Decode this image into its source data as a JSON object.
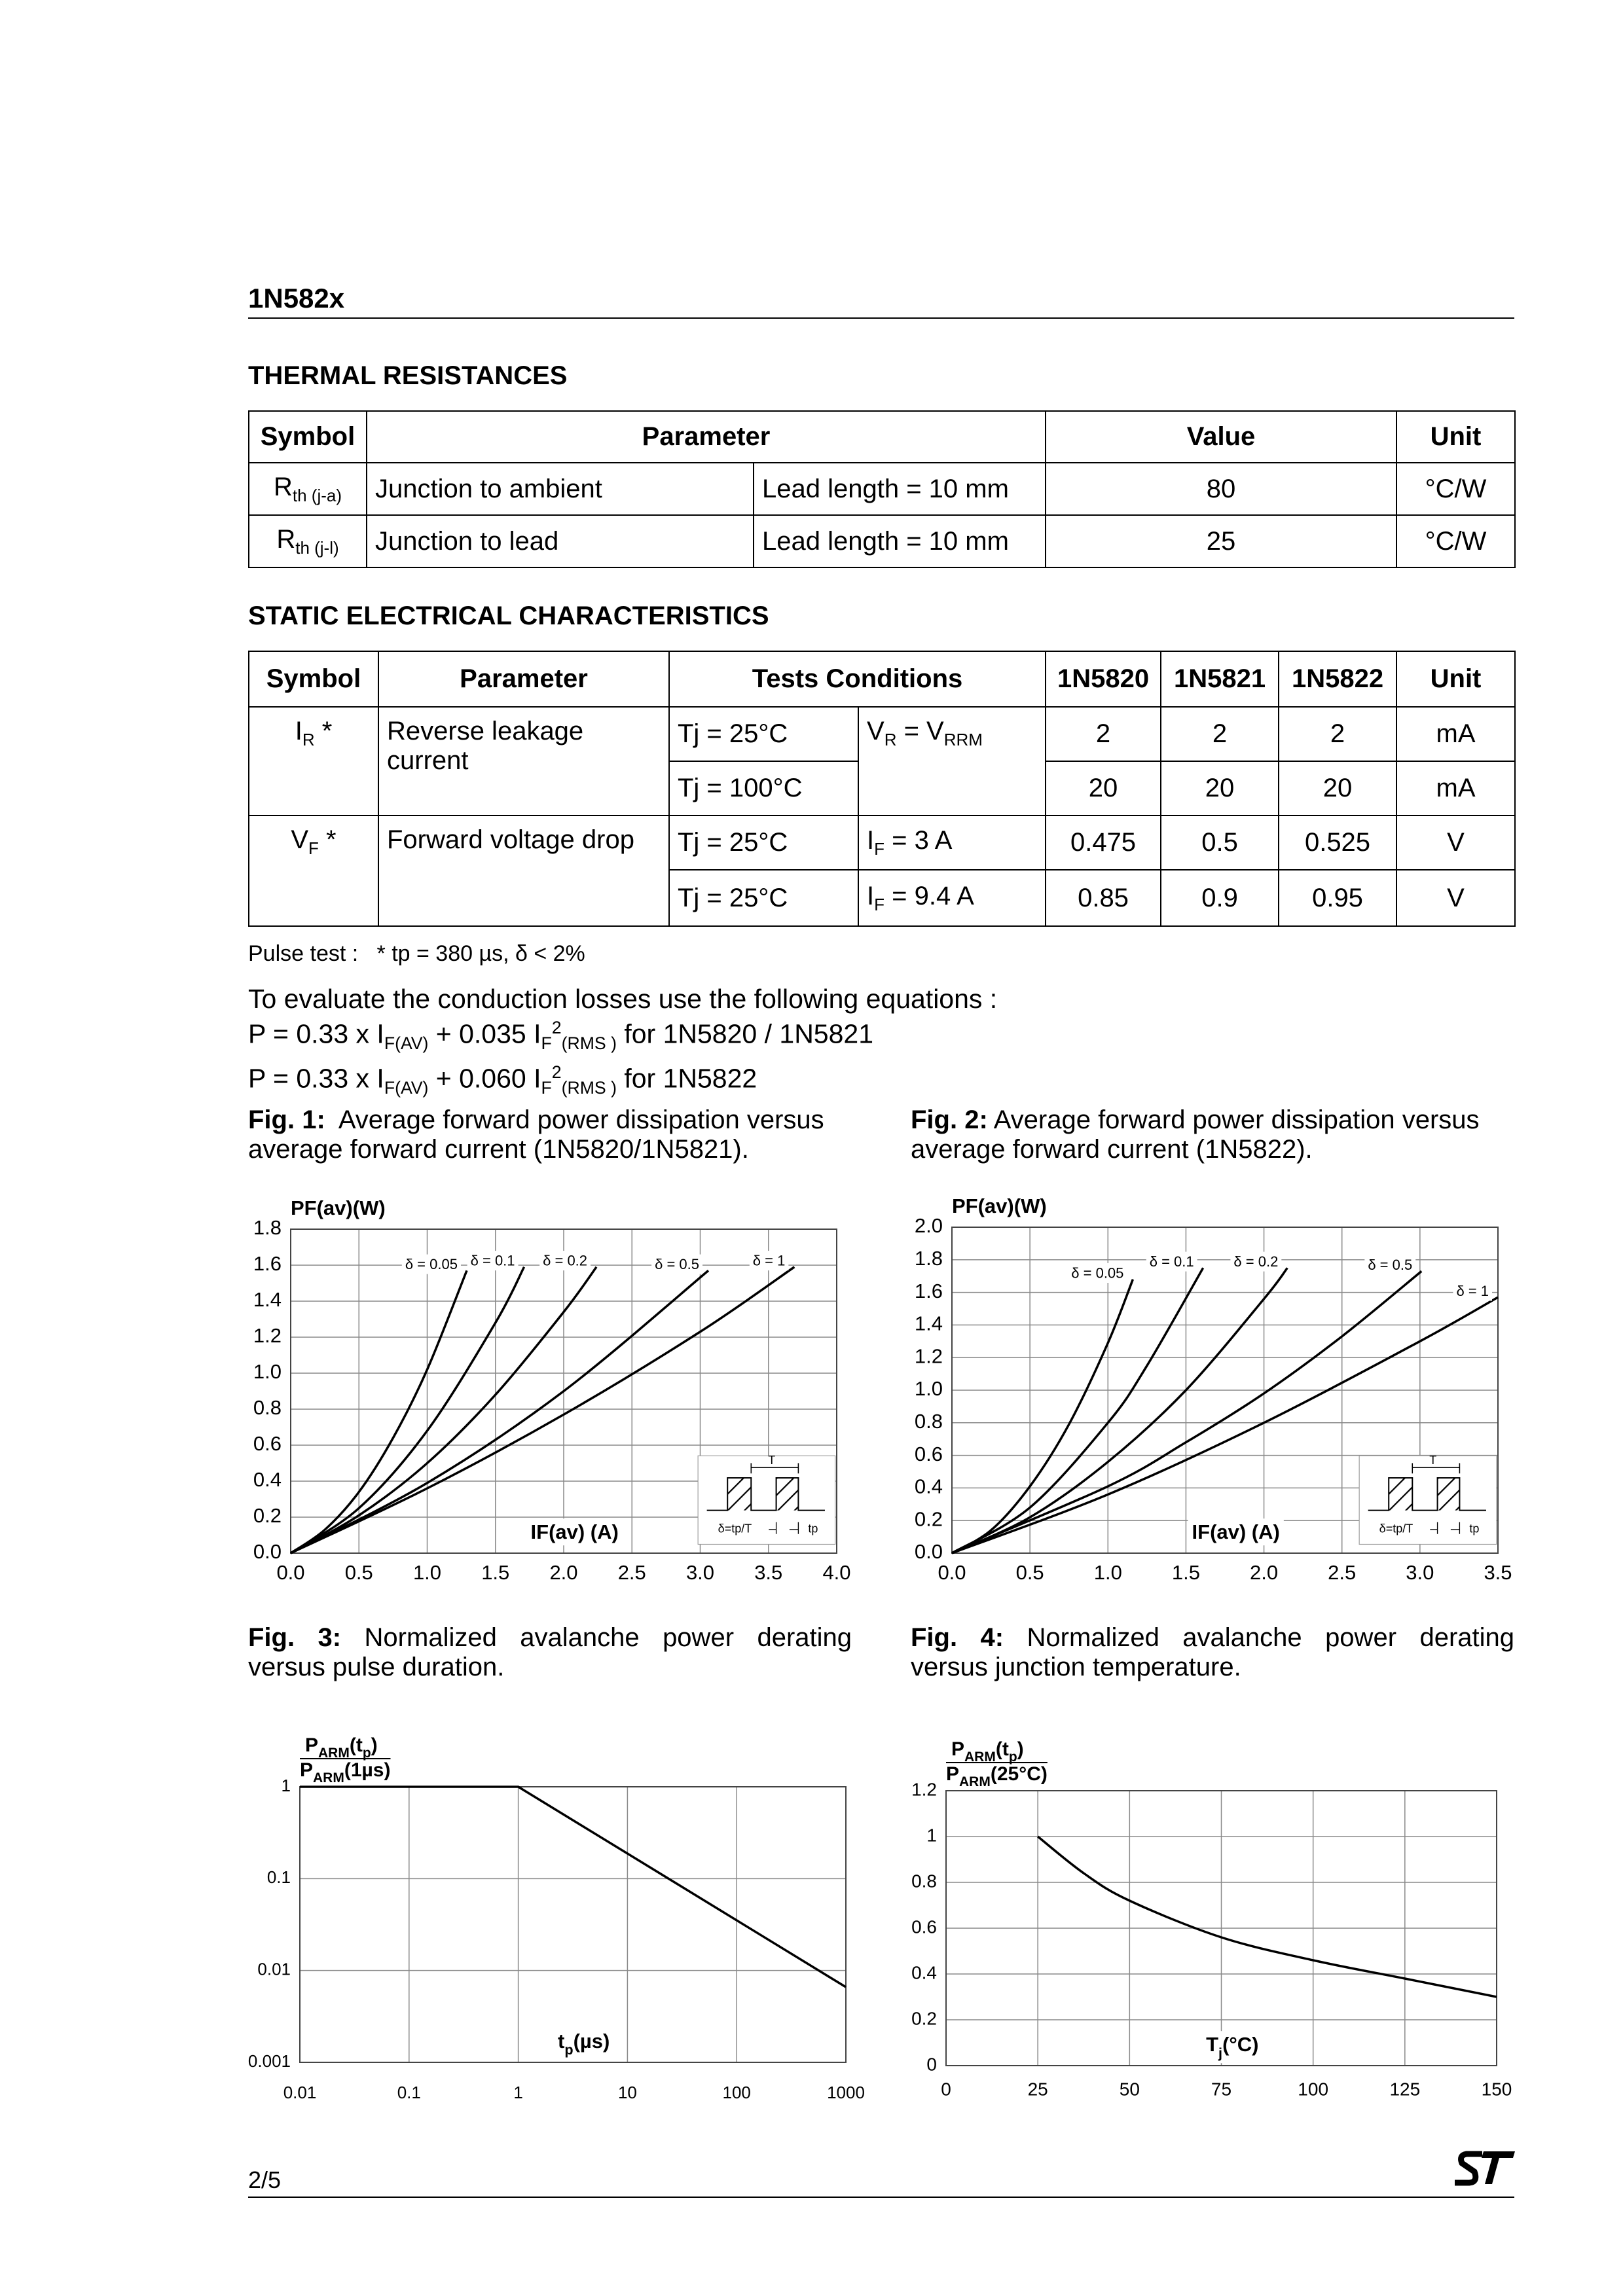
{
  "header": {
    "title": "1N582x"
  },
  "thermal_resistances": {
    "heading": "THERMAL  RESISTANCES",
    "columns": [
      "Symbol",
      "Parameter",
      "Value",
      "Unit"
    ],
    "rows": [
      {
        "symbol": [
          "R",
          {
            "sub": "th (j-a)"
          }
        ],
        "parameter": "Junction to ambient",
        "condition": "Lead length = 10 mm",
        "value": 80,
        "unit": "°C/W"
      },
      {
        "symbol": [
          "R",
          {
            "sub": "th (j-l)"
          }
        ],
        "parameter": "Junction to lead",
        "condition": "Lead length = 10 mm",
        "value": 25,
        "unit": "°C/W"
      }
    ]
  },
  "static_characteristics": {
    "heading": "STATIC ELECTRICAL CHARACTERISTICS",
    "columns": [
      "Symbol",
      "Parameter",
      "Tests Conditions",
      "1N5820",
      "1N5821",
      "1N5822",
      "Unit"
    ],
    "rows": [
      {
        "symbol": [
          "I",
          {
            "sub": "R"
          },
          " *"
        ],
        "parameter": "Reverse leakage current",
        "tests": [
          {
            "tj": "Tj = 25°C",
            "condition": [
              "V",
              {
                "sub": "R"
              },
              " = V",
              {
                "sub": "RRM"
              }
            ],
            "values": [
              2,
              2,
              2
            ],
            "unit": "mA"
          },
          {
            "tj": "Tj = 100°C",
            "values": [
              20,
              20,
              20
            ],
            "unit": "mA"
          }
        ]
      },
      {
        "symbol": [
          "V",
          {
            "sub": "F"
          },
          " *"
        ],
        "parameter": "Forward voltage drop",
        "tests": [
          {
            "tj": "Tj = 25°C",
            "condition": [
              "I",
              {
                "sub": "F"
              },
              " =  3 A"
            ],
            "values": [
              0.475,
              0.5,
              0.525
            ],
            "unit": "V"
          },
          {
            "tj": "Tj = 25°C",
            "condition": [
              "I",
              {
                "sub": "F"
              },
              " =  9.4 A"
            ],
            "values": [
              0.85,
              0.9,
              0.95
            ],
            "unit": "V"
          }
        ]
      }
    ]
  },
  "pulse_note": "Pulse test :   * tp = 380 µs, δ < 2%",
  "equations": {
    "intro": "To evaluate the conduction losses use the following equations :",
    "lines": [
      [
        "P = 0.33 x I",
        {
          "sub": "F(AV)"
        },
        " + 0.035 I",
        {
          "sub": "F"
        },
        {
          "sup": "2"
        },
        {
          "sub": "(RMS )"
        },
        " for 1N5820 / 1N5821"
      ],
      [
        "P = 0.33 x I",
        {
          "sub": "F(AV)"
        },
        " + 0.060 I",
        {
          "sub": "F"
        },
        {
          "sup": "2"
        },
        {
          "sub": "(RMS )"
        },
        " for 1N5822"
      ]
    ]
  },
  "chart_data": [
    {
      "type": "line",
      "fig": "Fig. 1:",
      "title": "Average forward power dissipation versus average forward current (1N5820/1N5821).",
      "ylabel": "PF(av)(W)",
      "xlabel": "IF(av) (A)",
      "xlim": [
        0,
        4
      ],
      "ylim": [
        0,
        1.8
      ],
      "xticks": [
        {
          "value": 0,
          "label": "0.0"
        },
        0.5,
        {
          "value": 1,
          "label": "1.0"
        },
        1.5,
        {
          "value": 2,
          "label": "2.0"
        },
        2.5,
        {
          "value": 3,
          "label": "3.0"
        },
        3.5,
        {
          "value": 4,
          "label": "4.0"
        }
      ],
      "yticks": [
        {
          "value": 0,
          "label": "0.0"
        },
        0.2,
        0.4,
        0.6,
        0.8,
        {
          "value": 1,
          "label": "1.0"
        },
        1.2,
        1.4,
        1.6,
        1.8
      ],
      "grid": true,
      "series": [
        {
          "name": "δ = 0.05",
          "color": "#000000",
          "x": [
            0,
            0.25,
            0.5,
            0.75,
            1,
            1.29
          ],
          "values": [
            0,
            0.13,
            0.34,
            0.64,
            1.02,
            1.57
          ]
        },
        {
          "name": "δ = 0.1",
          "color": "#000000",
          "x": [
            0,
            0.5,
            1,
            1.5,
            1.71
          ],
          "values": [
            0,
            0.25,
            0.68,
            1.28,
            1.59
          ]
        },
        {
          "name": "δ = 0.2",
          "color": "#000000",
          "x": [
            0,
            0.5,
            1,
            1.5,
            2,
            2.24
          ],
          "values": [
            0,
            0.21,
            0.5,
            0.88,
            1.34,
            1.59
          ]
        },
        {
          "name": "δ = 0.5",
          "color": "#000000",
          "x": [
            0,
            1,
            2,
            3.06
          ],
          "values": [
            0,
            0.39,
            0.9,
            1.57
          ]
        },
        {
          "name": "δ = 1",
          "color": "#000000",
          "x": [
            0,
            1,
            2,
            3,
            3.69
          ],
          "values": [
            0,
            0.36,
            0.77,
            1.23,
            1.59
          ]
        }
      ],
      "inset": {
        "period": "T",
        "duty": "δ=tp/T",
        "width": "tp"
      }
    },
    {
      "type": "line",
      "fig": "Fig. 2:",
      "title": "Average forward power dissipation versus average forward current (1N5822).",
      "ylabel": "PF(av)(W)",
      "xlabel": "IF(av) (A)",
      "xlim": [
        0,
        3.5
      ],
      "ylim": [
        0,
        2
      ],
      "xticks": [
        {
          "value": 0,
          "label": "0.0"
        },
        0.5,
        {
          "value": 1,
          "label": "1.0"
        },
        1.5,
        {
          "value": 2,
          "label": "2.0"
        },
        2.5,
        {
          "value": 3,
          "label": "3.0"
        },
        3.5
      ],
      "yticks": [
        {
          "value": 0,
          "label": "0.0"
        },
        0.2,
        0.4,
        0.6,
        0.8,
        {
          "value": 1,
          "label": "1.0"
        },
        1.2,
        1.4,
        1.6,
        1.8,
        {
          "value": 2,
          "label": "2.0"
        }
      ],
      "grid": true,
      "series": [
        {
          "name": "δ = 0.05",
          "color": "#000000",
          "x": [
            0,
            0.25,
            0.5,
            0.75,
            1,
            1.16
          ],
          "values": [
            0,
            0.14,
            0.41,
            0.79,
            1.29,
            1.68
          ]
        },
        {
          "name": "δ = 0.1",
          "color": "#000000",
          "x": [
            0,
            0.5,
            1,
            1.25,
            1.61
          ],
          "values": [
            0,
            0.28,
            0.8,
            1.15,
            1.75
          ]
        },
        {
          "name": "δ = 0.2",
          "color": "#000000",
          "x": [
            0,
            0.5,
            1,
            1.5,
            2,
            2.15
          ],
          "values": [
            0,
            0.22,
            0.56,
            1,
            1.56,
            1.75
          ]
        },
        {
          "name": "δ = 0.5",
          "color": "#000000",
          "x": [
            0,
            1,
            1.5,
            2,
            2.5,
            3.01
          ],
          "values": [
            0,
            0.41,
            0.68,
            0.98,
            1.33,
            1.73
          ]
        },
        {
          "name": "δ = 1",
          "color": "#000000",
          "x": [
            0,
            1,
            2,
            3,
            3.5
          ],
          "values": [
            0,
            0.36,
            0.8,
            1.3,
            1.57
          ]
        }
      ],
      "inset": {
        "period": "T",
        "duty": "δ=tp/T",
        "width": "tp"
      }
    },
    {
      "type": "line",
      "fig": "Fig. 3:",
      "title": "Normalized avalanche power derating versus pulse duration.",
      "ylabel": {
        "numerator": [
          "P",
          {
            "sub": "ARM"
          },
          "(t",
          {
            "sub": "p"
          },
          ")"
        ],
        "denominator": [
          "P",
          {
            "sub": "ARM"
          },
          "(1µs)"
        ]
      },
      "xlabel": [
        "t",
        {
          "sub": "p"
        },
        "(µs)"
      ],
      "xscale": "log",
      "yscale": "log",
      "xlim": [
        0.01,
        1000
      ],
      "ylim": [
        0.001,
        1
      ],
      "xticks": [
        0.01,
        0.1,
        1,
        10,
        100,
        1000
      ],
      "yticks": [
        0.001,
        0.01,
        0.1,
        1
      ],
      "grid": true,
      "series": [
        {
          "color": "#000000",
          "x": [
            0.01,
            1,
            1000
          ],
          "values": [
            1,
            1,
            0.0066
          ]
        }
      ]
    },
    {
      "type": "line",
      "fig": "Fig. 4:",
      "title": "Normalized avalanche power derating versus junction temperature.",
      "ylabel": {
        "numerator": [
          "P",
          {
            "sub": "ARM"
          },
          "(t",
          {
            "sub": "p"
          },
          ")"
        ],
        "denominator": [
          "P",
          {
            "sub": "ARM"
          },
          "(25°C)"
        ]
      },
      "xlabel": [
        "T",
        {
          "sub": "j"
        },
        "(°C)"
      ],
      "xlim": [
        0,
        150
      ],
      "ylim": [
        0,
        1.2
      ],
      "xticks": [
        0,
        25,
        50,
        75,
        100,
        125,
        150
      ],
      "yticks": [
        0,
        0.2,
        0.4,
        0.6,
        0.8,
        1,
        1.2
      ],
      "grid": true,
      "series": [
        {
          "color": "#000000",
          "x": [
            25,
            37.5,
            50,
            75,
            100,
            125,
            150
          ],
          "values": [
            1,
            0.84,
            0.72,
            0.56,
            0.46,
            0.38,
            0.3
          ]
        }
      ]
    }
  ],
  "footer": {
    "page": "2/5"
  }
}
